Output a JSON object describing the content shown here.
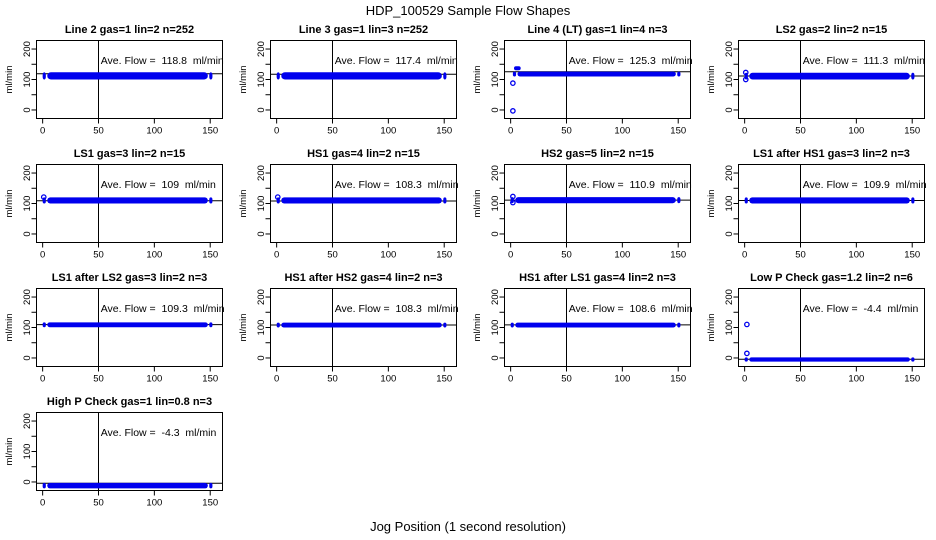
{
  "page": {
    "title": "HDP_100529  Sample Flow Shapes",
    "xlabel": "Jog Position (1 second resolution)",
    "ylabel": "ml/min"
  },
  "colors": {
    "point_blue": "#0000EE",
    "axis_black": "#000000",
    "background": "#FFFFFF"
  },
  "axes": {
    "xlim": [
      -5.5,
      161
    ],
    "ylim": [
      -28,
      228
    ],
    "xticks": [
      "0",
      "50",
      "100",
      "150"
    ],
    "xtick_values": [
      0,
      50,
      100,
      150
    ],
    "ytick_values": [
      0,
      50,
      100,
      150,
      200
    ],
    "ytick_labeled": [
      0,
      100,
      200
    ],
    "ytick_labels": [
      "0",
      "100",
      "200"
    ],
    "vline_x": 50,
    "grid": false
  },
  "chart_data": [
    {
      "type": "scatter",
      "title": "Line 2 gas=1 lin=2 n=252",
      "ave_flow": 118.8,
      "n": 252,
      "ave_label": "Ave. Flow =  118.8  ml/min",
      "band": {
        "x0": 0,
        "x1": 152,
        "center": 112,
        "half": 12
      },
      "outliers": []
    },
    {
      "type": "scatter",
      "title": "Line 3 gas=1 lin=3 n=252",
      "ave_flow": 117.4,
      "n": 252,
      "ave_label": "Ave. Flow =  117.4  ml/min",
      "band": {
        "x0": 0,
        "x1": 152,
        "center": 112,
        "half": 12
      },
      "outliers": []
    },
    {
      "type": "scatter",
      "title": "Line 4 (LT) gas=1 lin=4 n=3",
      "ave_flow": 125.3,
      "n": 3,
      "ave_label": "Ave. Flow =  125.3  ml/min",
      "band": {
        "x0": 2,
        "x1": 152,
        "center": 118,
        "half": 8
      },
      "extra_band": {
        "x0": 3,
        "x1": 9,
        "center": 137,
        "half": 3.5
      },
      "outliers": [
        [
          2,
          -3
        ],
        [
          2,
          88
        ]
      ]
    },
    {
      "type": "scatter",
      "title": "LS2 gas=2 lin=2 n=15",
      "ave_flow": 111.3,
      "n": 15,
      "ave_label": "Ave. Flow =  111.3  ml/min",
      "band": {
        "x0": 0,
        "x1": 152,
        "center": 111,
        "half": 11
      },
      "outliers": [
        [
          1,
          123
        ],
        [
          1,
          100
        ]
      ]
    },
    {
      "type": "scatter",
      "title": "LS1 gas=3 lin=2 n=15",
      "ave_flow": 109,
      "n": 15,
      "ave_label": "Ave. Flow =  109  ml/min",
      "band": {
        "x0": 0,
        "x1": 152,
        "center": 110,
        "half": 10
      },
      "outliers": [
        [
          1,
          121
        ]
      ]
    },
    {
      "type": "scatter",
      "title": "HS1 gas=4 lin=2 n=15",
      "ave_flow": 108.3,
      "n": 15,
      "ave_label": "Ave. Flow =  108.3  ml/min",
      "band": {
        "x0": 0,
        "x1": 152,
        "center": 110,
        "half": 10
      },
      "outliers": [
        [
          1,
          121
        ]
      ]
    },
    {
      "type": "scatter",
      "title": "HS2 gas=5 lin=2 n=15",
      "ave_flow": 110.9,
      "n": 15,
      "ave_label": "Ave. Flow =  110.9  ml/min",
      "band": {
        "x0": 0,
        "x1": 152,
        "center": 111,
        "half": 10
      },
      "outliers": [
        [
          2,
          123
        ],
        [
          2,
          103
        ]
      ]
    },
    {
      "type": "scatter",
      "title": "LS1 after HS1 gas=3 lin=2 n=3",
      "ave_flow": 109.9,
      "n": 3,
      "ave_label": "Ave. Flow =  109.9  ml/min",
      "band": {
        "x0": 0,
        "x1": 152,
        "center": 110,
        "half": 10
      },
      "outliers": []
    },
    {
      "type": "scatter",
      "title": "LS1 after LS2 gas=3 lin=2 n=3",
      "ave_flow": 109.3,
      "n": 3,
      "ave_label": "Ave. Flow =  109.3  ml/min",
      "band": {
        "x0": 0,
        "x1": 152,
        "center": 109,
        "half": 8
      },
      "outliers": []
    },
    {
      "type": "scatter",
      "title": "HS1 after HS2 gas=4 lin=2 n=3",
      "ave_flow": 108.3,
      "n": 3,
      "ave_label": "Ave. Flow =  108.3  ml/min",
      "band": {
        "x0": 0,
        "x1": 152,
        "center": 108,
        "half": 8
      },
      "outliers": []
    },
    {
      "type": "scatter",
      "title": "HS1 after LS1 gas=4 lin=2 n=3",
      "ave_flow": 108.6,
      "n": 3,
      "ave_label": "Ave. Flow =  108.6  ml/min",
      "band": {
        "x0": 0,
        "x1": 152,
        "center": 108,
        "half": 8
      },
      "outliers": []
    },
    {
      "type": "scatter",
      "title": "Low P Check gas=1.2 lin=2 n=6",
      "ave_flow": -4.4,
      "n": 6,
      "ave_label": "Ave. Flow =  -4.4  ml/min",
      "band": {
        "x0": 0,
        "x1": 152,
        "center": -5,
        "half": 7
      },
      "outliers": [
        [
          2,
          110
        ],
        [
          2,
          15
        ]
      ]
    },
    {
      "type": "scatter",
      "title": "High P Check gas=1 lin=0.8 n=3",
      "ave_flow": -4.3,
      "n": 3,
      "ave_label": "Ave. Flow =  -4.3  ml/min",
      "band": {
        "x0": 0,
        "x1": 152,
        "center": -12,
        "half": 9
      },
      "outliers": []
    }
  ]
}
